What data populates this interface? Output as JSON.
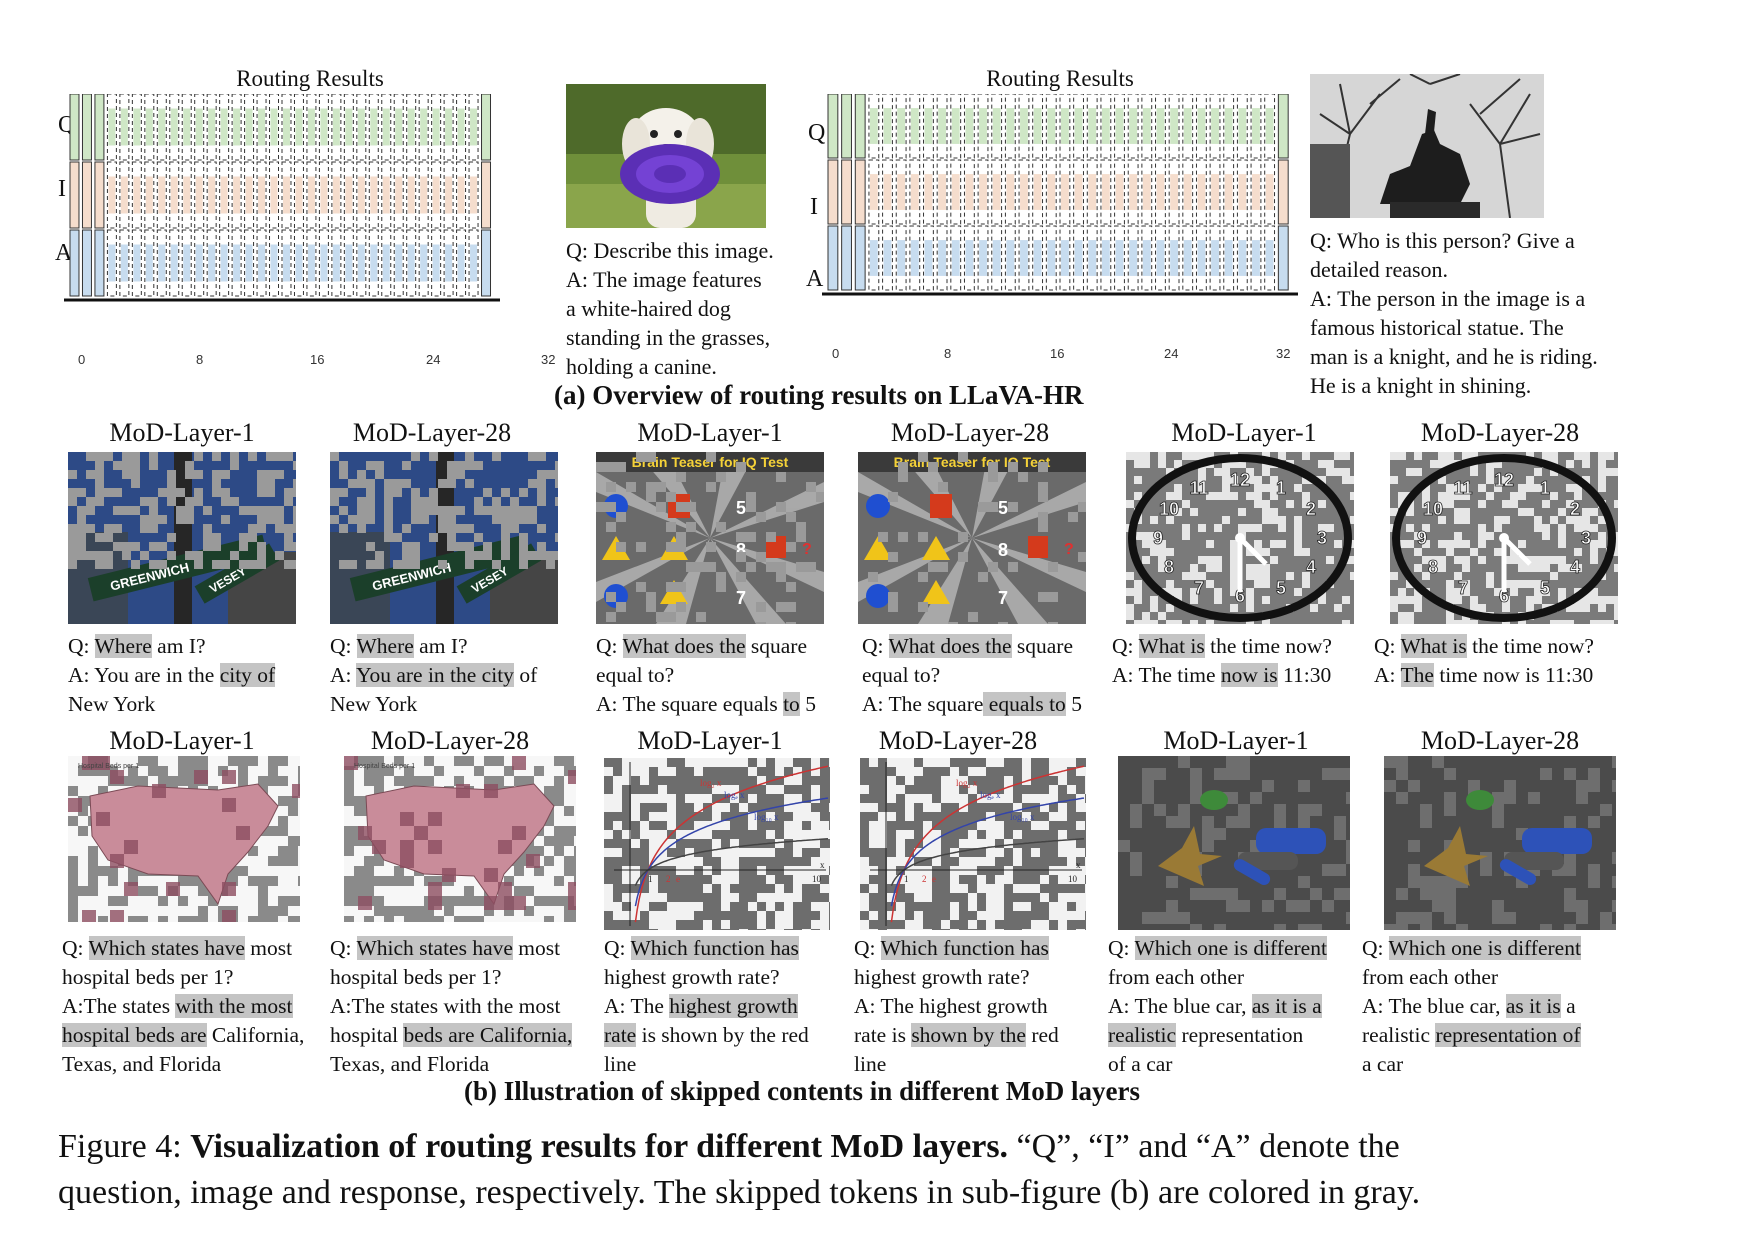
{
  "overview": {
    "left": {
      "title": "Routing Results",
      "row_labels": [
        "Q",
        "I",
        "A"
      ],
      "ticks": [
        "0",
        "8",
        "16",
        "24",
        "32"
      ],
      "question": "Q: Describe this image.",
      "answer_lines": [
        "A: The image features",
        "a white-haired dog",
        "standing in the grasses,",
        "holding a canine."
      ],
      "image_icon": "dog-with-frisbee-photo"
    },
    "right": {
      "title": "Routing Results",
      "row_labels": [
        "Q",
        "I",
        "A"
      ],
      "ticks": [
        "0",
        "8",
        "16",
        "24",
        "32"
      ],
      "question_lines": [
        "Q: Who is this person? Give a",
        "detailed reason."
      ],
      "answer_lines": [
        "A: The person in the image is a",
        "famous historical statue. The",
        "man is a knight, and he is riding.",
        "He is a knight in shining."
      ],
      "image_icon": "knight-statue-photo"
    },
    "caption": "(a) Overview of routing results on LLaVA-HR",
    "colors": {
      "q": "#cfe7c6",
      "i": "#f5ddcd",
      "a": "#c7dcef"
    }
  },
  "layers": {
    "row1": [
      {
        "title": "MoD-Layer-1",
        "image_icon": "street-sign-photo"
      },
      {
        "title": "MoD-Layer-28",
        "image_icon": "street-sign-photo"
      },
      {
        "title": "MoD-Layer-1",
        "image_icon": "brain-teaser-image"
      },
      {
        "title": "MoD-Layer-28",
        "image_icon": "brain-teaser-image"
      },
      {
        "title": "MoD-Layer-1",
        "image_icon": "clock-image"
      },
      {
        "title": "MoD-Layer-28",
        "image_icon": "clock-image"
      }
    ],
    "row2": [
      {
        "title": "MoD-Layer-1",
        "image_icon": "us-map-image"
      },
      {
        "title": "MoD-Layer-28",
        "image_icon": "us-map-image"
      },
      {
        "title": "MoD-Layer-1",
        "image_icon": "log-graph-image"
      },
      {
        "title": "MoD-Layer-28",
        "image_icon": "log-graph-image"
      },
      {
        "title": "MoD-Layer-1",
        "image_icon": "toy-objects-render"
      },
      {
        "title": "MoD-Layer-28",
        "image_icon": "toy-objects-render"
      }
    ],
    "teaser_title": "Brain Teaser for IQ Test",
    "map_title": "Hospital Beds per 1",
    "sign_texts": [
      "GREENWICH",
      "VESEY"
    ],
    "clock_numbers": [
      "12",
      "1",
      "2",
      "3",
      "4",
      "5",
      "6",
      "7",
      "8",
      "9",
      "10",
      "11"
    ],
    "teaser_values": [
      "5",
      "8",
      "7",
      "?"
    ],
    "graph_labels": [
      "log₂ x",
      "logₑ x",
      "log₁₀ x",
      "1",
      "2",
      "e",
      "10",
      "x"
    ],
    "caption": "(b) Illustration of  skipped contents in different MoD layers"
  },
  "qa": {
    "r1c1": [
      [
        {
          "t": "Q: "
        },
        {
          "t": "Where",
          "h": 1
        },
        {
          "t": " am I?"
        }
      ],
      [
        {
          "t": "A: You are in the "
        },
        {
          "t": "city of",
          "h": 1
        }
      ],
      [
        {
          "t": "New York"
        }
      ]
    ],
    "r1c2": [
      [
        {
          "t": "Q: "
        },
        {
          "t": "Where",
          "h": 1
        },
        {
          "t": " am I?"
        }
      ],
      [
        {
          "t": "A: "
        },
        {
          "t": "You are in the city",
          "h": 1
        },
        {
          "t": " of"
        }
      ],
      [
        {
          "t": "New York"
        }
      ]
    ],
    "r1c3": [
      [
        {
          "t": "Q: "
        },
        {
          "t": "What does the",
          "h": 1
        },
        {
          "t": " square"
        }
      ],
      [
        {
          "t": "equal to?"
        }
      ],
      [
        {
          "t": "A: The square equals "
        },
        {
          "t": "to",
          "h": 1
        },
        {
          "t": " 5"
        }
      ]
    ],
    "r1c4": [
      [
        {
          "t": "Q: "
        },
        {
          "t": "What does the",
          "h": 1
        },
        {
          "t": " square"
        }
      ],
      [
        {
          "t": "equal to?"
        }
      ],
      [
        {
          "t": "A: The square"
        },
        {
          "t": " equals to",
          "h": 1
        },
        {
          "t": " 5"
        }
      ]
    ],
    "r1c5": [
      [
        {
          "t": "Q: "
        },
        {
          "t": "What is",
          "h": 1
        },
        {
          "t": " the time now?"
        }
      ],
      [
        {
          "t": "A: The time "
        },
        {
          "t": "now is",
          "h": 1
        },
        {
          "t": " 11:30"
        }
      ]
    ],
    "r1c6": [
      [
        {
          "t": "Q: "
        },
        {
          "t": "What is",
          "h": 1
        },
        {
          "t": " the time now?"
        }
      ],
      [
        {
          "t": "A: "
        },
        {
          "t": "The",
          "h": 1
        },
        {
          "t": " time now is 11:30"
        }
      ]
    ],
    "r2c1": [
      [
        {
          "t": "Q: "
        },
        {
          "t": "Which states have",
          "h": 1
        },
        {
          "t": " most"
        }
      ],
      [
        {
          "t": "hospital beds per 1?"
        }
      ],
      [
        {
          "t": "A:The states "
        },
        {
          "t": "with the most",
          "h": 1
        }
      ],
      [
        {
          "t": "hospital beds are",
          "h": 1
        },
        {
          "t": " California,"
        }
      ],
      [
        {
          "t": "Texas, and Florida"
        }
      ]
    ],
    "r2c2": [
      [
        {
          "t": "Q: "
        },
        {
          "t": "Which states have",
          "h": 1
        },
        {
          "t": " most"
        }
      ],
      [
        {
          "t": "hospital beds per 1?"
        }
      ],
      [
        {
          "t": "A:The states with the most"
        }
      ],
      [
        {
          "t": "hospital "
        },
        {
          "t": "beds are California,",
          "h": 1
        }
      ],
      [
        {
          "t": "Texas, and Florida"
        }
      ]
    ],
    "r2c3": [
      [
        {
          "t": "Q: "
        },
        {
          "t": "Which function has",
          "h": 1
        }
      ],
      [
        {
          "t": "highest growth rate?"
        }
      ],
      [
        {
          "t": "A: The "
        },
        {
          "t": "highest growth",
          "h": 1
        }
      ],
      [
        {
          "t": "rate",
          "h": 1
        },
        {
          "t": " is shown by the red"
        }
      ],
      [
        {
          "t": "line"
        }
      ]
    ],
    "r2c4": [
      [
        {
          "t": "Q: "
        },
        {
          "t": "Which function has",
          "h": 1
        }
      ],
      [
        {
          "t": "highest growth rate?"
        }
      ],
      [
        {
          "t": "A: The highest growth"
        }
      ],
      [
        {
          "t": "rate is "
        },
        {
          "t": "shown by the",
          "h": 1
        },
        {
          "t": " red"
        }
      ],
      [
        {
          "t": "line"
        }
      ]
    ],
    "r2c5": [
      [
        {
          "t": "Q: "
        },
        {
          "t": "Which one is different",
          "h": 1
        }
      ],
      [
        {
          "t": "from each other"
        }
      ],
      [
        {
          "t": "A: The blue car, "
        },
        {
          "t": "as it is a",
          "h": 1
        }
      ],
      [
        {
          "t": "realistic",
          "h": 1
        },
        {
          "t": " representation"
        }
      ],
      [
        {
          "t": "of a car"
        }
      ]
    ],
    "r2c6": [
      [
        {
          "t": "Q: "
        },
        {
          "t": "Which one is different",
          "h": 1
        }
      ],
      [
        {
          "t": "from each other"
        }
      ],
      [
        {
          "t": "A: The blue car, "
        },
        {
          "t": "as it is",
          "h": 1
        },
        {
          "t": " a"
        }
      ],
      [
        {
          "t": "realistic "
        },
        {
          "t": "representation of",
          "h": 1
        }
      ],
      [
        {
          "t": "a car"
        }
      ]
    ]
  },
  "figure_caption": {
    "label": "Figure 4: ",
    "bold": "Visualization of routing results for different MoD layers.",
    "rest_line1": " “Q”, “I” and “A” denote the",
    "line2": "question, image and response, respectively. The skipped tokens in sub-figure (b) are colored in gray."
  }
}
